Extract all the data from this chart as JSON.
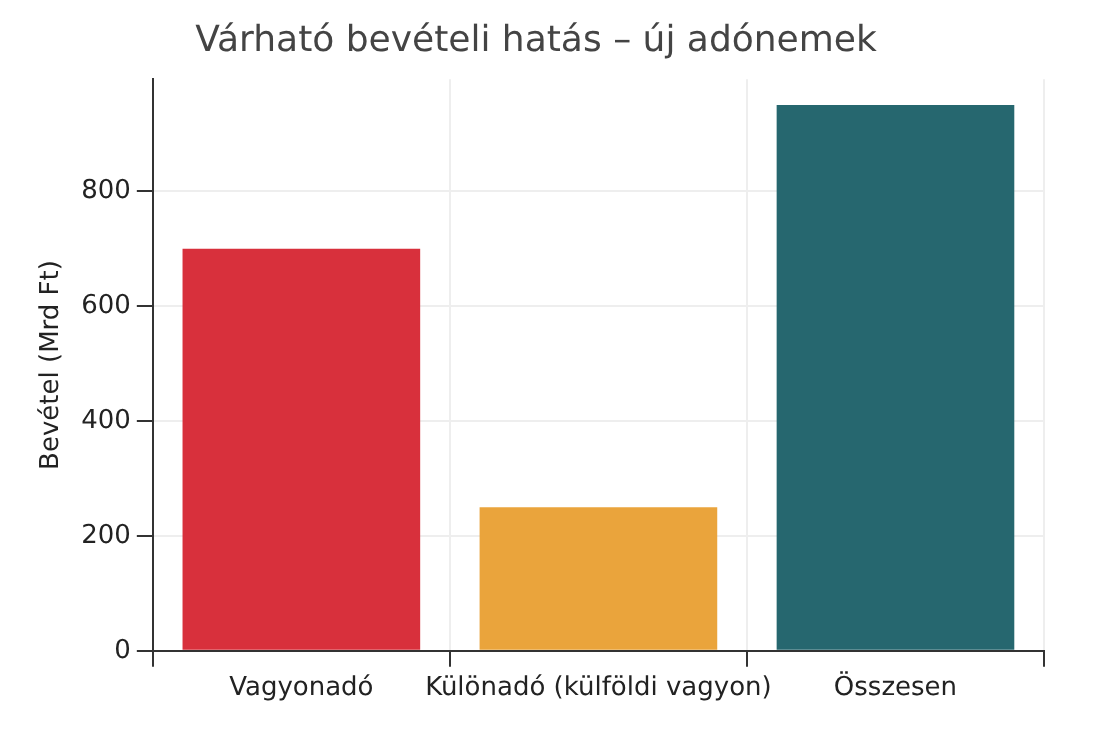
{
  "chart_data": {
    "type": "bar",
    "title": "Várható bevételi hatás – új adónemek",
    "ylabel": "Bevétel (Mrd Ft)",
    "categories": [
      "Vagyonadó",
      "Különadó (külföldi vagyon)",
      "Összesen"
    ],
    "values": [
      700,
      250,
      950
    ],
    "colors": [
      "#d8303c",
      "#eaa43c",
      "#26676f"
    ],
    "ylim": [
      0,
      995
    ],
    "yticks": [
      0,
      200,
      400,
      600,
      800
    ],
    "grid": true
  }
}
